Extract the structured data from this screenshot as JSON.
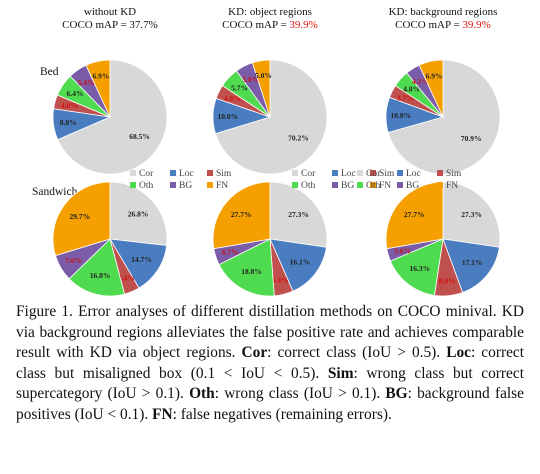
{
  "chart_data": {
    "type": "pie",
    "slice_order": [
      "Cor",
      "Loc",
      "Sim",
      "Oth",
      "BG",
      "FN"
    ],
    "colors": {
      "Cor": "#d8d8d8",
      "Loc": "#4a7cc0",
      "Sim": "#c0504d",
      "Oth": "#4fdb4f",
      "BG": "#7b5ca8",
      "FN": "#f5a000"
    },
    "label_colors": {
      "Cor": "#222222",
      "Loc": "#222222",
      "Sim": "#d01010",
      "Oth": "#222222",
      "BG": "#d01010",
      "FN": "#222222"
    },
    "columns": [
      {
        "title": "without KD",
        "map_prefix": "COCO mAP = ",
        "map_value": "37.7%"
      },
      {
        "title": "KD: object regions",
        "map_prefix": "COCO mAP = ",
        "map_value": "39.9%"
      },
      {
        "title": "KD: background regions",
        "map_prefix": "COCO mAP = ",
        "map_value": "39.9%"
      }
    ],
    "rows": [
      {
        "label": "Bed",
        "pies": [
          {
            "values": [
              68.5,
              8.8,
              4.0,
              6.4,
              5.4,
              6.9
            ],
            "labels": [
              "68.5%",
              "8.8%",
              "4.0%",
              "6.4%",
              "5.4%",
              "6.9%"
            ]
          },
          {
            "values": [
              70.2,
              10.0,
              4.0,
              5.7,
              5.0,
              5.0
            ],
            "labels": [
              "70.2%",
              "10.0%",
              "4.0%",
              "5.7%",
              "5.0%",
              "5.0%"
            ]
          },
          {
            "values": [
              70.9,
              10.0,
              3.7,
              4.8,
              4.1,
              6.9
            ],
            "labels": [
              "70.9%",
              "10.0%",
              "3.7%",
              "4.8%",
              "4.1%",
              "6.9%"
            ]
          }
        ]
      },
      {
        "label": "Sandwich",
        "pies": [
          {
            "values": [
              26.8,
              14.7,
              4.4,
              16.8,
              7.6,
              29.7
            ],
            "labels": [
              "26.8%",
              "14.7%",
              "4.4%",
              "16.8%",
              "7.6%",
              "29.7%"
            ]
          },
          {
            "values": [
              27.3,
              16.1,
              5.4,
              18.8,
              4.7,
              27.7
            ],
            "labels": [
              "27.3%",
              "16.1%",
              "5.4%",
              "18.8%",
              "4.7%",
              "27.7%"
            ]
          },
          {
            "values": [
              27.3,
              17.1,
              8.0,
              16.3,
              3.6,
              27.7
            ],
            "labels": [
              "27.3%",
              "17.1%",
              "8.0%",
              "16.3%",
              "3.6%",
              "27.7%"
            ]
          }
        ]
      }
    ],
    "legend": [
      {
        "key": "Cor",
        "label": "Cor"
      },
      {
        "key": "Loc",
        "label": "Loc"
      },
      {
        "key": "Sim",
        "label": "Sim"
      },
      {
        "key": "Oth",
        "label": "Oth"
      },
      {
        "key": "BG",
        "label": "BG"
      },
      {
        "key": "FN",
        "label": "FN"
      }
    ]
  },
  "caption": {
    "lead": "Figure 1. Error analyses of different distillation methods on COCO minival. KD via background regions alleviates the false positive rate and achieves comparable result with KD via object regions. ",
    "cor_term": "Cor",
    "cor_text": ": correct class (IoU > 0.5). ",
    "loc_term": "Loc",
    "loc_text": ": correct class but misaligned box (0.1 < IoU < 0.5). ",
    "sim_term": "Sim",
    "sim_text": ": wrong class but correct supercategory (IoU > 0.1). ",
    "oth_term": "Oth",
    "oth_text": ": wrong class (IoU > 0.1). ",
    "bg_term": "BG",
    "bg_text": ": background false positives (IoU < 0.1). ",
    "fn_term": "FN",
    "fn_text": ": false negatives (remaining errors)."
  }
}
